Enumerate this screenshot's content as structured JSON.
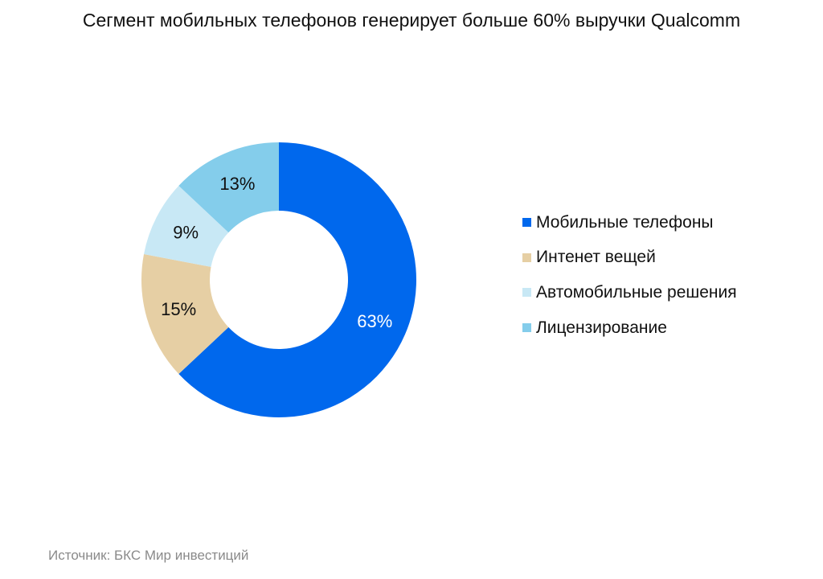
{
  "title": "Сегмент мобильных телефонов генерирует больше 60% выручки Qualcomm",
  "source": "Источник: БКС Мир инвестиций",
  "chart_data": {
    "type": "pie",
    "donut": true,
    "title": "Сегмент мобильных телефонов генерирует больше 60% выручки Qualcomm",
    "legend_position": "right",
    "slices": [
      {
        "name": "Мобильные телефоны",
        "value": 63,
        "label": "63%",
        "color": "#0068ED",
        "label_color": "#ffffff"
      },
      {
        "name": "Интенет вещей",
        "value": 15,
        "label": "15%",
        "color": "#E6CFA4",
        "label_color": "#111111"
      },
      {
        "name": "Автомобильные решения",
        "value": 9,
        "label": "9%",
        "color": "#C8E8F5",
        "label_color": "#111111"
      },
      {
        "name": "Лицензирование",
        "value": 13,
        "label": "13%",
        "color": "#84CDEB",
        "label_color": "#111111"
      }
    ]
  }
}
